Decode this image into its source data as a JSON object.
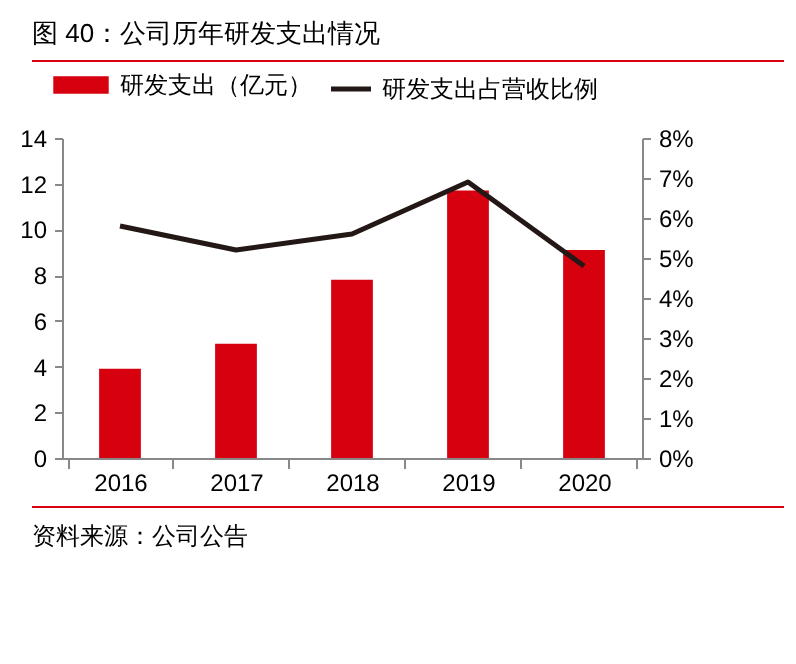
{
  "chart_data": {
    "type": "bar",
    "title": "图 40：公司历年研发支出情况",
    "categories": [
      "2016",
      "2017",
      "2018",
      "2019",
      "2020"
    ],
    "series": [
      {
        "name": "研发支出（亿元）",
        "color": "#d7000f",
        "values": [
          3.9,
          5.0,
          7.8,
          11.7,
          9.1
        ]
      },
      {
        "name": "研发支出占营收比例",
        "color": "#231815",
        "type": "line",
        "axis": "y2",
        "values": [
          5.8,
          5.2,
          5.6,
          6.9,
          4.8
        ]
      }
    ],
    "ylim": [
      0,
      14
    ],
    "yticks": [
      0,
      2,
      4,
      6,
      8,
      10,
      12,
      14
    ],
    "y2lim": [
      0,
      8
    ],
    "y2ticks": [
      {
        "value": 0,
        "label": "0%"
      },
      {
        "value": 1,
        "label": "1%"
      },
      {
        "value": 2,
        "label": "2%"
      },
      {
        "value": 3,
        "label": "3%"
      },
      {
        "value": 4,
        "label": "4%"
      },
      {
        "value": 5,
        "label": "5%"
      },
      {
        "value": 6,
        "label": "6%"
      },
      {
        "value": 7,
        "label": "7%"
      },
      {
        "value": 8,
        "label": "8%"
      }
    ],
    "legend": "top",
    "annotations": [
      "资料来源：公司公告"
    ]
  }
}
